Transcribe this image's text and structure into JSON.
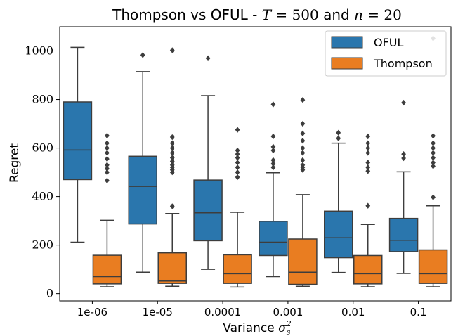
{
  "chart_data": {
    "type": "box",
    "title": "Thompson vs OFUL - T = 500 and n = 20",
    "xlabel": "Variance σ²ₛ",
    "ylabel": "Regret",
    "ylim": [
      -30,
      1100
    ],
    "yticks": [
      0,
      200,
      400,
      600,
      800,
      1000
    ],
    "categories": [
      "1e-06",
      "1e-05",
      "0.0001",
      "0.001",
      "0.01",
      "0.1"
    ],
    "legend_position": "top-right",
    "grid": false,
    "series": [
      {
        "name": "OFUL",
        "color": "#2a76ad",
        "boxes": [
          {
            "whislo": 212,
            "q1": 470,
            "med": 592,
            "q3": 790,
            "whishi": 1015,
            "fliers": []
          },
          {
            "whislo": 88,
            "q1": 287,
            "med": 442,
            "q3": 566,
            "whishi": 915,
            "fliers": [
              983
            ]
          },
          {
            "whislo": 100,
            "q1": 218,
            "med": 333,
            "q3": 468,
            "whishi": 816,
            "fliers": [
              970
            ]
          },
          {
            "whislo": 70,
            "q1": 157,
            "med": 212,
            "q3": 298,
            "whishi": 498,
            "fliers": [
              520,
              535,
              550,
              590,
              605,
              648,
              780
            ]
          },
          {
            "whislo": 87,
            "q1": 148,
            "med": 230,
            "q3": 340,
            "whishi": 620,
            "fliers": [
              640,
              663
            ]
          },
          {
            "whislo": 83,
            "q1": 173,
            "med": 220,
            "q3": 310,
            "whishi": 502,
            "fliers": [
              558,
              575,
              787
            ]
          }
        ]
      },
      {
        "name": "Thompson",
        "color": "#e97d21",
        "boxes": [
          {
            "whislo": 28,
            "q1": 40,
            "med": 70,
            "q3": 158,
            "whishi": 302,
            "fliers": [
              466,
              500,
              515,
              530,
              555,
              580,
              600,
              620,
              651
            ]
          },
          {
            "whislo": 30,
            "q1": 42,
            "med": 52,
            "q3": 168,
            "whishi": 330,
            "fliers": [
              360,
              500,
              510,
              520,
              530,
              545,
              560,
              580,
              600,
              620,
              645,
              1003
            ]
          },
          {
            "whislo": 27,
            "q1": 42,
            "med": 82,
            "q3": 160,
            "whishi": 335,
            "fliers": [
              480,
              500,
              520,
              540,
              560,
              575,
              590,
              675
            ]
          },
          {
            "whislo": 30,
            "q1": 38,
            "med": 88,
            "q3": 225,
            "whishi": 408,
            "fliers": [
              510,
              520,
              530,
              550,
              580,
              600,
              630,
              660,
              700,
              798
            ]
          },
          {
            "whislo": 28,
            "q1": 40,
            "med": 82,
            "q3": 157,
            "whishi": 285,
            "fliers": [
              362,
              505,
              520,
              540,
              580,
              600,
              620,
              648
            ]
          },
          {
            "whislo": 28,
            "q1": 42,
            "med": 82,
            "q3": 180,
            "whishi": 362,
            "fliers": [
              397,
              525,
              540,
              560,
              580,
              600,
              620,
              650,
              1052
            ]
          }
        ]
      }
    ]
  }
}
